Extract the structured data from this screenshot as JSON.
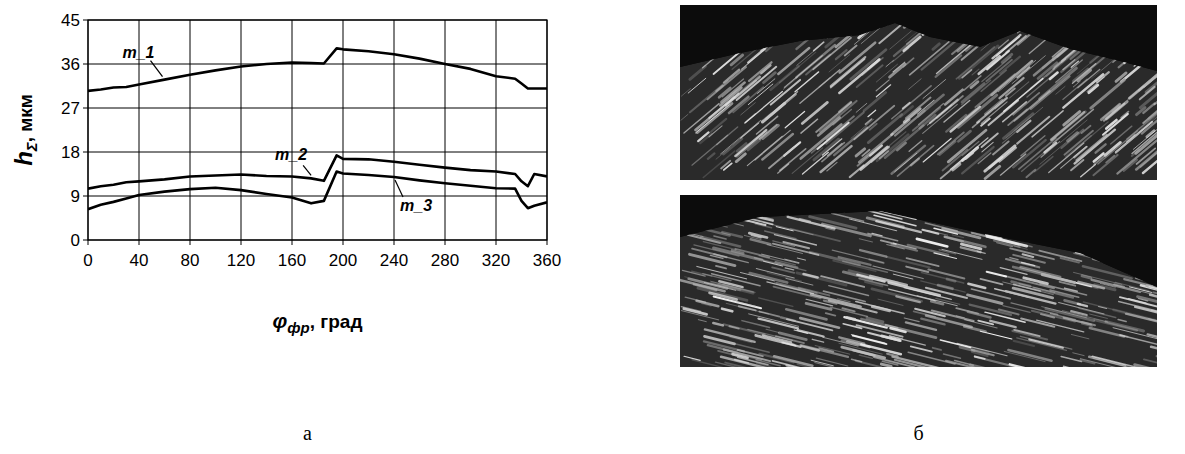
{
  "panels": {
    "a": {
      "label": "а"
    },
    "b": {
      "label": "б"
    }
  },
  "chart_data": {
    "type": "line",
    "xlabel": "φфр, град",
    "ylabel": "hΣ, мкм",
    "x": [
      0,
      10,
      20,
      30,
      40,
      60,
      80,
      100,
      120,
      140,
      160,
      175,
      185,
      195,
      200,
      220,
      240,
      260,
      280,
      300,
      320,
      335,
      340,
      345,
      350,
      360
    ],
    "series": [
      {
        "name": "m_1",
        "color": "#000000",
        "values": [
          30.5,
          30.8,
          31.2,
          31.3,
          31.8,
          32.8,
          33.8,
          34.7,
          35.5,
          36.0,
          36.3,
          36.2,
          36.1,
          39.2,
          39.0,
          38.6,
          38.0,
          37.1,
          36.0,
          35.0,
          33.5,
          33.0,
          32.0,
          31.0,
          31.0,
          31.0
        ]
      },
      {
        "name": "m_2",
        "color": "#000000",
        "values": [
          10.5,
          11.0,
          11.3,
          11.8,
          12.0,
          12.4,
          13.0,
          13.2,
          13.4,
          13.1,
          13.0,
          12.6,
          12.1,
          17.3,
          16.6,
          16.5,
          16.0,
          15.4,
          14.8,
          14.3,
          14.0,
          13.5,
          12.0,
          11.0,
          13.5,
          13.0
        ]
      },
      {
        "name": "m_3",
        "color": "#000000",
        "values": [
          6.3,
          7.2,
          7.8,
          8.5,
          9.2,
          9.9,
          10.4,
          10.7,
          10.2,
          9.4,
          8.7,
          7.5,
          8.0,
          14.0,
          13.6,
          13.3,
          12.9,
          12.2,
          11.6,
          11.1,
          10.6,
          10.5,
          8.0,
          6.5,
          7.0,
          7.7
        ]
      }
    ],
    "xlim": [
      0,
      360
    ],
    "xticks": [
      0,
      40,
      80,
      120,
      160,
      200,
      240,
      280,
      320,
      360
    ],
    "ylim": [
      0,
      45
    ],
    "yticks": [
      0,
      9,
      18,
      27,
      36,
      45
    ],
    "grid": true
  }
}
